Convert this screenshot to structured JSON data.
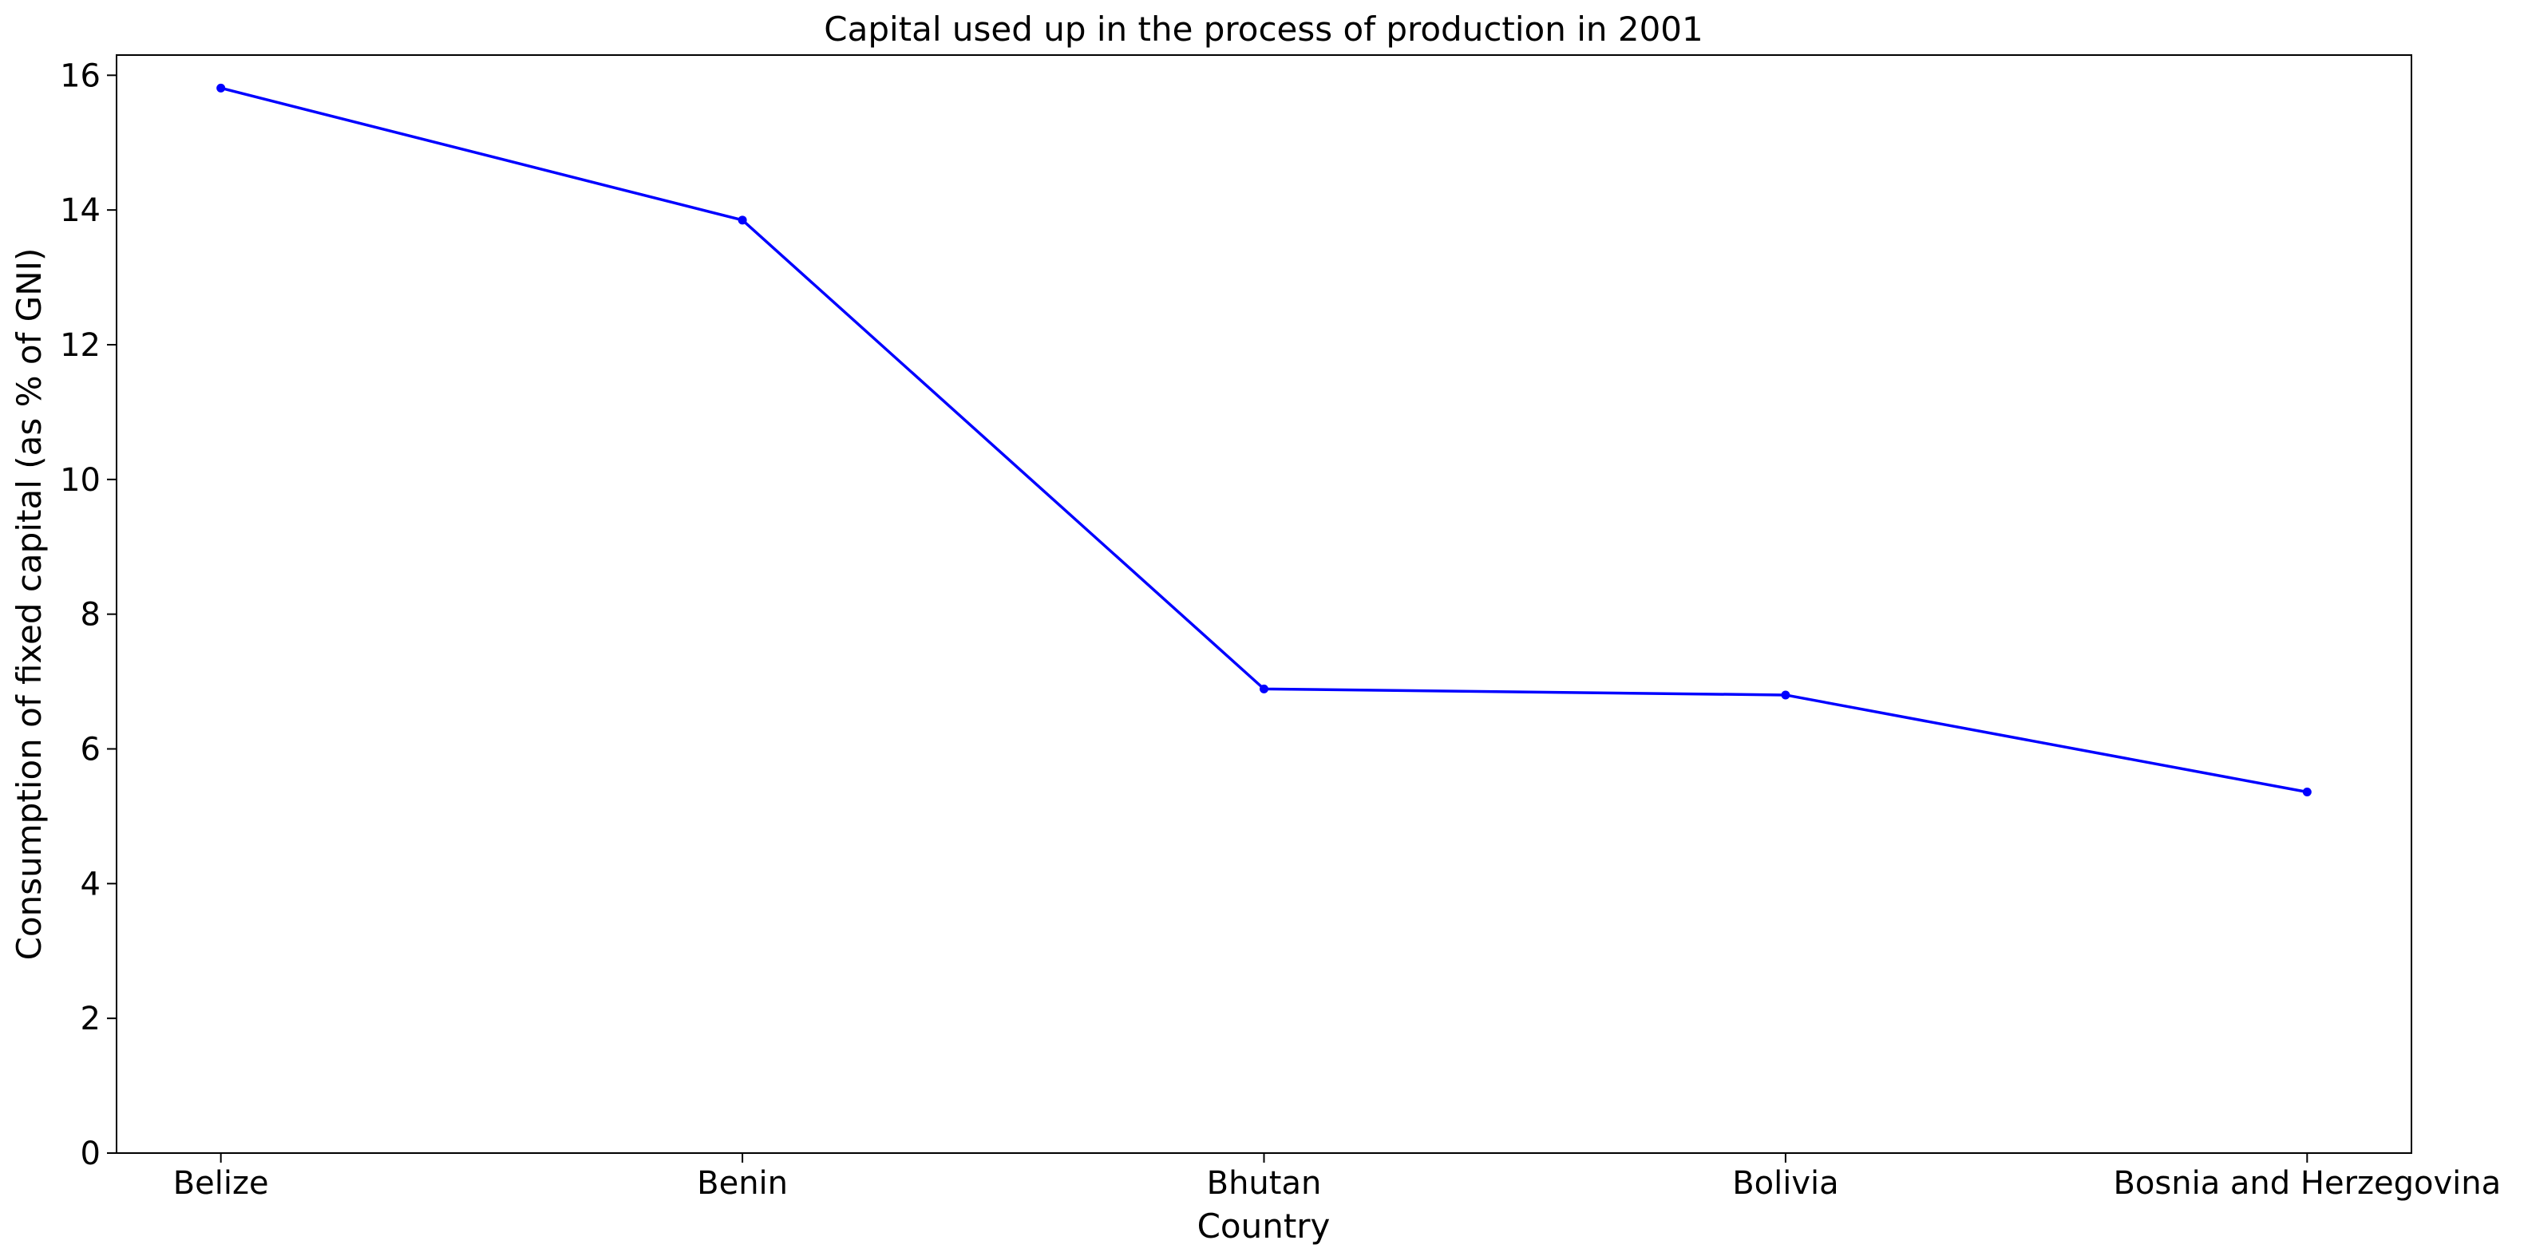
{
  "chart_data": {
    "type": "line",
    "title": "Capital used up in the process of production in 2001",
    "xlabel": "Country",
    "ylabel": "Consumption of fixed capital (as % of GNI)",
    "categories": [
      "Belize",
      "Benin",
      "Bhutan",
      "Bolivia",
      "Bosnia and Herzegovina"
    ],
    "series": [
      {
        "values": [
          15.81,
          13.85,
          6.89,
          6.8,
          5.36
        ]
      }
    ],
    "ylim": [
      0,
      16.3
    ],
    "yticks": [
      "0",
      "2",
      "4",
      "6",
      "8",
      "10",
      "12",
      "14",
      "16"
    ],
    "grid": false,
    "legend": "none",
    "colors": {
      "line": "#0000ff",
      "axis": "#000000"
    }
  }
}
